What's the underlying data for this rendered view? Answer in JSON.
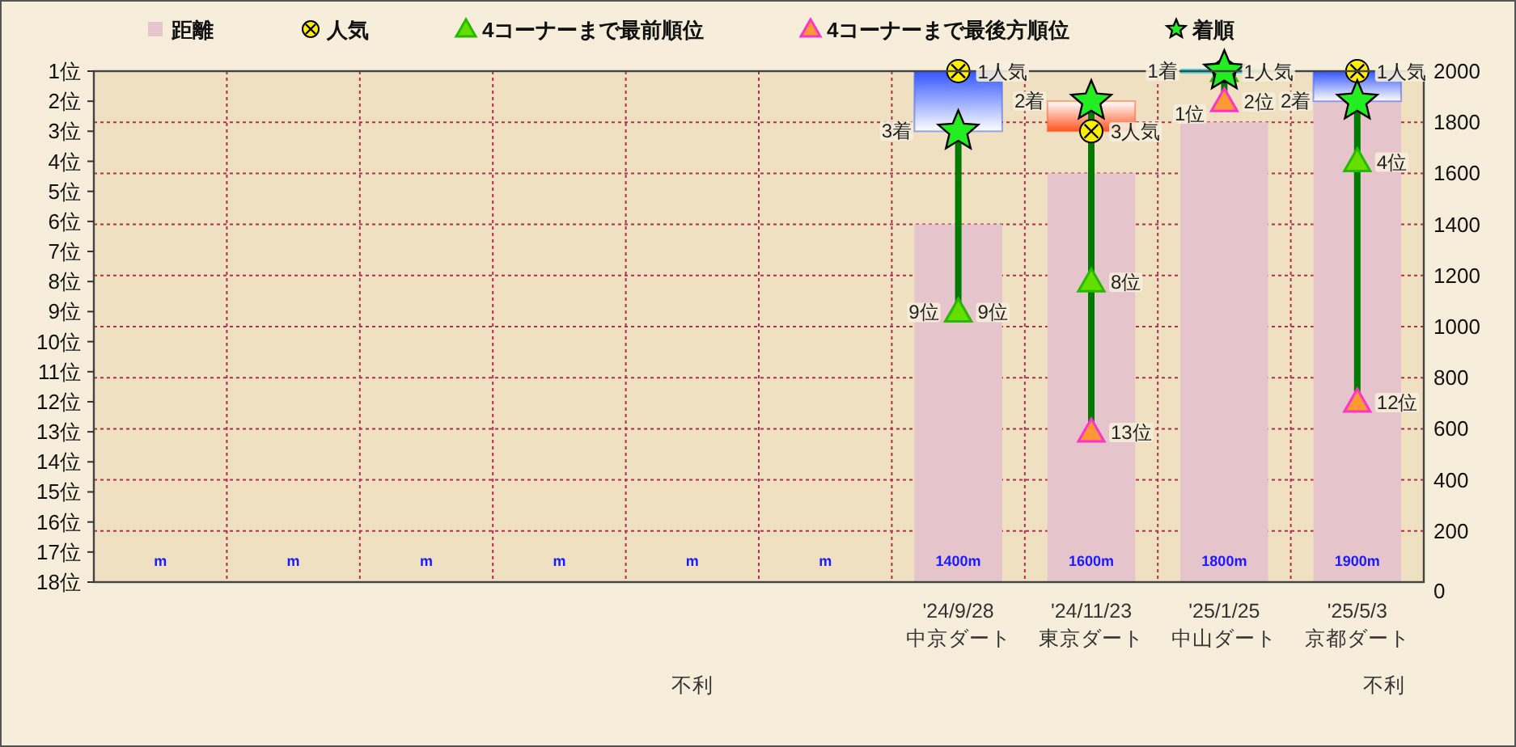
{
  "chart_data": {
    "type": "bar",
    "categories": [
      null,
      null,
      null,
      null,
      null,
      null,
      "'24/9/28\n中京ダート",
      "'24/11/23\n東京ダート",
      "'25/1/25\n中山ダート",
      "'25/5/3\n京都ダート"
    ],
    "series": [
      {
        "name": "距離",
        "type": "bar",
        "axis": "y2",
        "color": "#e6c4cc",
        "marker": "square",
        "values": [
          null,
          null,
          null,
          null,
          null,
          null,
          1400,
          1600,
          1800,
          1900
        ],
        "value_labels": [
          "m",
          "m",
          "m",
          "m",
          "m",
          "m",
          "1400m",
          "1600m",
          "1800m",
          "1900m"
        ]
      },
      {
        "type": "bar",
        "base": [
          null,
          null,
          null,
          null,
          null,
          null,
          1,
          3,
          1,
          1
        ],
        "values": [
          null,
          null,
          null,
          null,
          null,
          null,
          2,
          -1,
          0,
          1
        ],
        "colors": [
          null,
          null,
          null,
          null,
          null,
          null,
          "#3355ff",
          "#ff5522",
          "#44dddd",
          "#3355ff"
        ]
      },
      {
        "name": "人気",
        "type": "scatter",
        "color": "#ffee00",
        "marker": "circle",
        "values": [
          null,
          null,
          null,
          null,
          null,
          null,
          1,
          3,
          1,
          1
        ],
        "value_labels": [
          null,
          null,
          null,
          null,
          null,
          null,
          "1人気",
          "3人気",
          "1人気",
          "1人気"
        ]
      },
      {
        "name": "4コーナーまで最前順位",
        "type": "scatter",
        "color": "#66dd00",
        "marker": "triangle",
        "values": [
          null,
          null,
          null,
          null,
          null,
          null,
          9,
          8,
          1,
          4
        ],
        "value_labels": [
          null,
          null,
          null,
          null,
          null,
          null,
          "9位",
          "8位",
          "1位",
          "4位"
        ]
      },
      {
        "name": "4コーナーまで最後方順位",
        "type": "scatter",
        "color": "#ff9933",
        "marker": "triangle",
        "values": [
          null,
          null,
          null,
          null,
          null,
          null,
          9,
          13,
          2,
          12
        ],
        "value_labels": [
          null,
          null,
          null,
          null,
          null,
          null,
          "9位",
          "13位",
          "2位",
          "12位"
        ]
      },
      {
        "name": "着順",
        "type": "scatter",
        "color": "#22ee22",
        "marker": "star",
        "values": [
          null,
          null,
          null,
          null,
          null,
          null,
          3,
          2,
          1,
          2
        ],
        "value_labels": [
          null,
          null,
          null,
          null,
          null,
          null,
          "3着",
          "2着",
          "1着",
          "2着"
        ]
      }
    ],
    "ylim": [
      18,
      1
    ],
    "yticks": [
      {
        "value": 1,
        "label": "1位"
      },
      {
        "value": 2,
        "label": "2位"
      },
      {
        "value": 3,
        "label": "3位"
      },
      {
        "value": 4,
        "label": "4位"
      },
      {
        "value": 5,
        "label": "5位"
      },
      {
        "value": 6,
        "label": "6位"
      },
      {
        "value": 7,
        "label": "7位"
      },
      {
        "value": 8,
        "label": "8位"
      },
      {
        "value": 9,
        "label": "9位"
      },
      {
        "value": 10,
        "label": "10位"
      },
      {
        "value": 11,
        "label": "11位"
      },
      {
        "value": 12,
        "label": "12位"
      },
      {
        "value": 13,
        "label": "13位"
      },
      {
        "value": 14,
        "label": "14位"
      },
      {
        "value": 15,
        "label": "15位"
      },
      {
        "value": 16,
        "label": "16位"
      },
      {
        "value": 17,
        "label": "17位"
      },
      {
        "value": 18,
        "label": "18位"
      }
    ],
    "y2lim": [
      0,
      2000
    ],
    "y2ticks": [
      0,
      200,
      400,
      600,
      800,
      1000,
      1200,
      1400,
      1600,
      1800,
      2000
    ],
    "grid": true,
    "legend": "top",
    "annotations": [
      "不利",
      "不利"
    ]
  }
}
